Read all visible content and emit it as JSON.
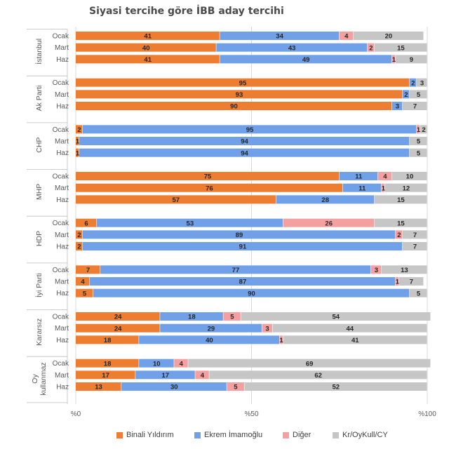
{
  "chart_data": {
    "type": "bar",
    "stacked": true,
    "orientation": "horizontal",
    "normalized": true,
    "title": "Siyasi tercihe göre İBB aday tercihi",
    "xlim": [
      0,
      100
    ],
    "x_ticks": [
      "%0",
      "%50",
      "%100"
    ],
    "grid": true,
    "legend_position": "bottom",
    "series": [
      {
        "name": "Binali Yıldırım",
        "color": "#ed7d31"
      },
      {
        "name": "Ekrem İmamoğlu",
        "color": "#6fa0e8"
      },
      {
        "name": "Diğer",
        "color": "#f4a0a0"
      },
      {
        "name": "Kr/OyKull/CY",
        "color": "#c6c6c6"
      }
    ],
    "groups": [
      {
        "label_lines": [
          "İstanbul"
        ],
        "rows": [
          {
            "label": "Ocak",
            "values": [
              41,
              34,
              4,
              20
            ]
          },
          {
            "label": "Mart",
            "values": [
              40,
              43,
              2,
              15
            ]
          },
          {
            "label": "Haz",
            "values": [
              41,
              49,
              1,
              9
            ]
          }
        ]
      },
      {
        "label_lines": [
          "Ak Parti"
        ],
        "rows": [
          {
            "label": "Ocak",
            "values": [
              95,
              2,
              0,
              3
            ]
          },
          {
            "label": "Mart",
            "values": [
              93,
              2,
              0,
              5
            ]
          },
          {
            "label": "Haz",
            "values": [
              90,
              3,
              0,
              7
            ]
          }
        ]
      },
      {
        "label_lines": [
          "CHP"
        ],
        "rows": [
          {
            "label": "Ocak",
            "values": [
              2,
              95,
              1,
              2
            ]
          },
          {
            "label": "Mart",
            "values": [
              1,
              94,
              0,
              5
            ]
          },
          {
            "label": "Haz",
            "values": [
              1,
              94,
              0,
              5
            ]
          }
        ]
      },
      {
        "label_lines": [
          "MHP"
        ],
        "rows": [
          {
            "label": "Ocak",
            "values": [
              75,
              11,
              4,
              10
            ]
          },
          {
            "label": "Mart",
            "values": [
              76,
              11,
              1,
              12
            ]
          },
          {
            "label": "Haz",
            "values": [
              57,
              28,
              0,
              15
            ]
          }
        ]
      },
      {
        "label_lines": [
          "HDP"
        ],
        "rows": [
          {
            "label": "Ocak",
            "values": [
              6,
              53,
              26,
              15
            ]
          },
          {
            "label": "Mart",
            "values": [
              2,
              89,
              2,
              7
            ]
          },
          {
            "label": "Haz",
            "values": [
              2,
              91,
              0,
              7
            ]
          }
        ]
      },
      {
        "label_lines": [
          "İyi Parti"
        ],
        "rows": [
          {
            "label": "Ocak",
            "values": [
              7,
              77,
              3,
              13
            ]
          },
          {
            "label": "Mart",
            "values": [
              4,
              87,
              1,
              7
            ]
          },
          {
            "label": "Haz",
            "values": [
              5,
              90,
              0,
              5
            ]
          }
        ]
      },
      {
        "label_lines": [
          "Kararsız"
        ],
        "rows": [
          {
            "label": "Ocak",
            "values": [
              24,
              18,
              5,
              54
            ]
          },
          {
            "label": "Mart",
            "values": [
              24,
              29,
              3,
              44
            ]
          },
          {
            "label": "Haz",
            "values": [
              18,
              40,
              1,
              41
            ]
          }
        ]
      },
      {
        "label_lines": [
          "Oy",
          "kullanmaz"
        ],
        "rows": [
          {
            "label": "Ocak",
            "values": [
              18,
              10,
              4,
              69
            ]
          },
          {
            "label": "Mart",
            "values": [
              17,
              17,
              4,
              62
            ]
          },
          {
            "label": "Haz",
            "values": [
              13,
              30,
              5,
              52
            ]
          }
        ]
      }
    ]
  }
}
